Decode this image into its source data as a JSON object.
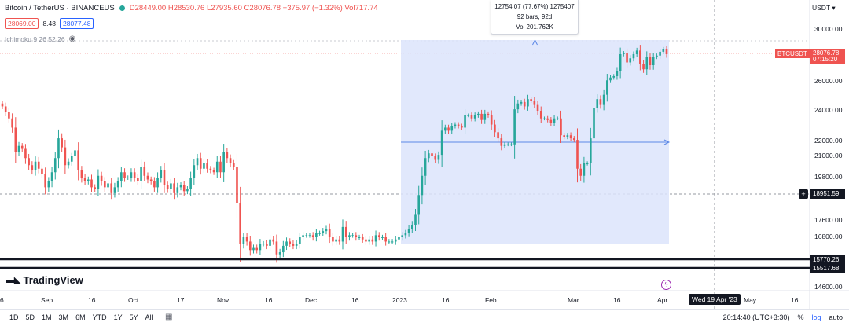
{
  "header": {
    "symbol_title": "Bitcoin / TetherUS · BINANCEUS",
    "status_color": "#26a69a",
    "open": "D28449.00",
    "high": "H28530.76",
    "low": "L27935.60",
    "close": "C28076.78",
    "change": "−375.97 (−1.32%)",
    "volume": "Vol717.74",
    "sell_price": "28069.00",
    "spread": "8.48",
    "buy_price": "28077.48",
    "indicator": "Ichimoku 9 26 52 26",
    "indicator_icon": "eye-icon"
  },
  "measure_tooltip": {
    "line1": "12754.07 (77.67%) 1275407",
    "line2": "92 bars, 92d",
    "line3": "Vol 201.762K"
  },
  "price_axis": {
    "currency": "USDT",
    "labels": [
      "30000.00",
      "28000.00",
      "26000.00",
      "24000.00",
      "22000.00",
      "21000.00",
      "19800.00",
      "17600.00",
      "16800.00",
      "14600.00"
    ],
    "symbol_tag": "BTCUSDT",
    "last_price": "28076.78",
    "countdown": "07:15:20",
    "crosshair_price": "18951.59",
    "level_1": "15770.26",
    "level_2": "15517.68"
  },
  "time_axis": {
    "labels": [
      "6",
      "Sep",
      "16",
      "Oct",
      "17",
      "Nov",
      "16",
      "Dec",
      "16",
      "2023",
      "16",
      "Feb",
      "Mar",
      "16",
      "Apr",
      "May",
      "16"
    ],
    "crosshair_date": "Wed 19 Apr '23"
  },
  "branding": {
    "logo_text": "TradingView"
  },
  "bottom_bar": {
    "timeframes": [
      "1D",
      "5D",
      "1M",
      "3M",
      "6M",
      "YTD",
      "1Y",
      "5Y",
      "All"
    ],
    "clock": "20:14:40 (UTC+3:30)",
    "percent_label": "%",
    "log_label": "log",
    "auto_label": "auto"
  },
  "colors": {
    "up": "#26a69a",
    "down": "#ef5350",
    "measure_fill": "#dce4fb",
    "measure_line": "#5b87e6",
    "dark": "#131722"
  },
  "chart_data": {
    "type": "candlestick",
    "series": [
      {
        "name": "BTCUSDT",
        "closes": [
          24300,
          23900,
          23500,
          22900,
          21300,
          21700,
          21500,
          20900,
          20500,
          20200,
          20700,
          20300,
          20000,
          19300,
          19600,
          20100,
          20900,
          22200,
          21600,
          20500,
          20700,
          21000,
          21400,
          20200,
          19800,
          19600,
          19700,
          19300,
          19200,
          19900,
          19600,
          19300,
          19500,
          19000,
          19300,
          19600,
          20100,
          19800,
          19800,
          20100,
          19800,
          19600,
          20400,
          19900,
          19700,
          19600,
          19300,
          19800,
          20200,
          19400,
          19200,
          19500,
          19000,
          19300,
          19400,
          19100,
          19200,
          19800,
          20500,
          20900,
          20300,
          20600,
          20300,
          20200,
          20100,
          20700,
          20100,
          21300,
          20900,
          20600,
          20400,
          18500,
          16500,
          16800,
          16600,
          16200,
          16300,
          16200,
          16500,
          16500,
          16400,
          16700,
          16600,
          16000,
          16100,
          16400,
          16600,
          16500,
          16400,
          16500,
          16800,
          16900,
          16900,
          16900,
          16800,
          17000,
          17000,
          17100,
          17200,
          16800,
          16600,
          16700,
          16600,
          17300,
          16800,
          16900,
          16900,
          16800,
          16800,
          16700,
          16600,
          16700,
          16600,
          16900,
          16800,
          16800,
          16600,
          16600,
          16600,
          16700,
          16800,
          16900,
          17000,
          17200,
          17400,
          17900,
          18900,
          19900,
          20900,
          21200,
          21000,
          20800,
          21100,
          22700,
          22900,
          22700,
          23000,
          23100,
          23000,
          22900,
          23700,
          23700,
          23500,
          23700,
          23800,
          23400,
          23800,
          23700,
          23100,
          22600,
          22200,
          21700,
          21800,
          21800,
          21800,
          24100,
          24500,
          24600,
          24300,
          24800,
          24700,
          24400,
          24000,
          23500,
          23500,
          23400,
          23200,
          23500,
          23500,
          22400,
          22300,
          22400,
          22200,
          22100,
          20300,
          19900,
          20600,
          20600,
          22200,
          24200,
          24800,
          24400,
          25100,
          26100,
          26300,
          26400,
          26800,
          28000,
          28100,
          27400,
          27700,
          28000,
          28300,
          27300,
          26900,
          27800,
          27200,
          27800,
          27900,
          28200,
          28400,
          28000
        ]
      }
    ],
    "x_labels": [
      "Sep",
      "Oct",
      "Nov",
      "Dec",
      "2023",
      "Feb",
      "Mar",
      "Apr"
    ],
    "y_ticks": [
      14600,
      16800,
      17600,
      19800,
      21000,
      22000,
      24000,
      26000,
      28000,
      30000
    ],
    "last_price": 28076.78,
    "measure": {
      "change": 12754.07,
      "percent": 77.67,
      "bars": 92
    }
  }
}
